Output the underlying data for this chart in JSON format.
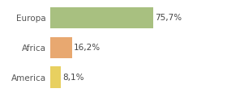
{
  "categories": [
    "America",
    "Africa",
    "Europa"
  ],
  "values": [
    8.1,
    16.2,
    75.7
  ],
  "colors": [
    "#e8d060",
    "#e8a870",
    "#a8c080"
  ],
  "labels": [
    "8,1%",
    "16,2%",
    "75,7%"
  ],
  "xlim": [
    0,
    100
  ],
  "background_color": "#ffffff",
  "bar_height": 0.72,
  "label_fontsize": 7.5,
  "tick_fontsize": 7.5,
  "grid_color": "#e0e0e0"
}
